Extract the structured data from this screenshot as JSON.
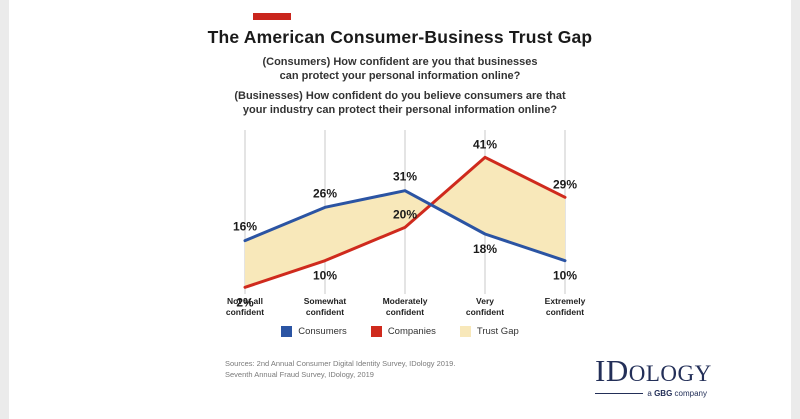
{
  "header": {
    "title": "The American Consumer-Business Trust Gap",
    "subtitle_consumers": "(Consumers) How confident are you that businesses\ncan protect your personal information online?",
    "subtitle_businesses": "(Businesses) How confident do you believe consumers are that\nyour industry can protect their personal information online?"
  },
  "chart_data": {
    "type": "line",
    "categories": [
      "Not at all\nconfident",
      "Somewhat\nconfident",
      "Moderately\nconfident",
      "Very\nconfident",
      "Extremely\nconfident"
    ],
    "series": [
      {
        "name": "Consumers",
        "color": "#2b54a3",
        "values": [
          16,
          26,
          31,
          18,
          10
        ]
      },
      {
        "name": "Companies",
        "color": "#cf2a1d",
        "values": [
          2,
          10,
          20,
          41,
          29
        ]
      }
    ],
    "fill_between": {
      "name": "Trust Gap",
      "color": "#f8e8ba"
    },
    "ylim": [
      0,
      45
    ],
    "grid": "vertical-only",
    "gridline_color": "#c9c9c9",
    "data_label_suffix": "%",
    "legend_position": "bottom"
  },
  "footer": {
    "sources_line1": "Sources:  2nd Annual Consumer Digital Identity Survey, IDology 2019.",
    "sources_line2": "Seventh Annual Fraud Survey, IDology, 2019",
    "logo_id": "ID",
    "logo_rest": "OLOGY",
    "logo_sub_a": "a ",
    "logo_sub_gbg": "GBG",
    "logo_sub_company": " company"
  },
  "accent_color": "#c9251d"
}
